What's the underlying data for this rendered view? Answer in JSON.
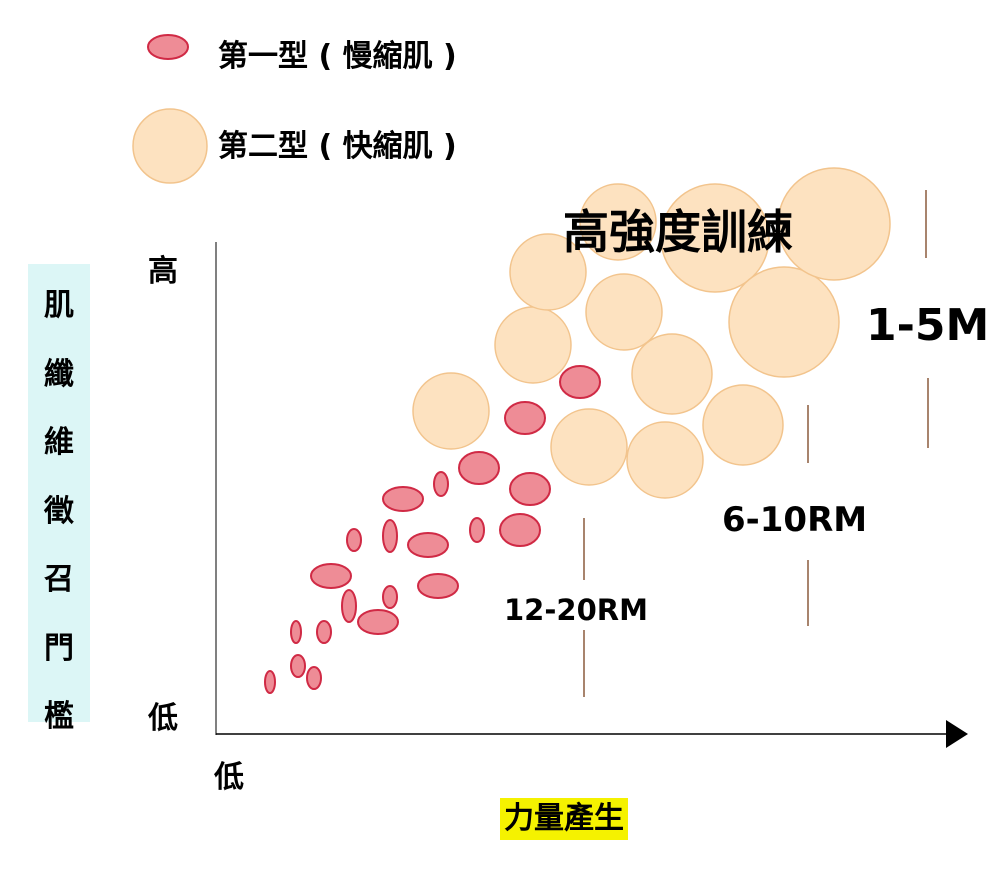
{
  "legend": {
    "type1": "第一型 ( 慢縮肌 )",
    "type2": "第二型 ( 快縮肌 )"
  },
  "y_axis": {
    "label_chars": [
      "肌",
      "纖",
      "維",
      "徵",
      "召",
      "門",
      "檻"
    ],
    "high": "高",
    "low": "低"
  },
  "x_axis": {
    "label": "力量產生",
    "low": "低"
  },
  "zones": {
    "high_intensity": "高強度訓練",
    "rm_1_5": "1-5M",
    "rm_6_10": "6-10RM",
    "rm_12_20": "12-20RM"
  },
  "colors": {
    "type1_fill": "#ee8c96",
    "type1_stroke": "#d02a45",
    "type2_fill": "#fde2c0",
    "type2_stroke": "#f2c48d",
    "axis": "#000000",
    "divider": "#8b5a3c",
    "ylabel_bg": "#dcf6f6",
    "xlabel_bg": "#f5f200"
  }
}
